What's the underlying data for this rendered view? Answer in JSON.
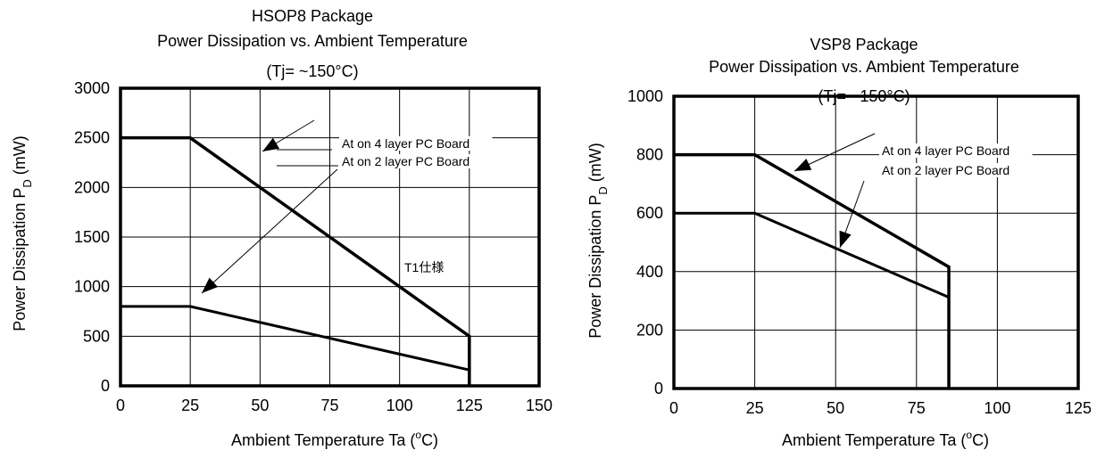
{
  "chart_data": [
    {
      "type": "line",
      "title": "HSOP8 Package",
      "subtitle": "Power Dissipation vs. Ambient Temperature",
      "condition": "(Tj= ~150°C)",
      "xlabel": "Ambient Temperature Ta (°C)",
      "ylabel": "Power Dissipation P_D (mW)",
      "ylabel_main": "Power Dissipation P",
      "ylabel_sub": "D",
      "ylabel_unit": "(mW)",
      "xlabel_main": "Ambient Temperature Ta  (",
      "xlabel_sup": "o",
      "xlabel_tail": "C)",
      "xlim": [
        0,
        150
      ],
      "ylim": [
        0,
        3000
      ],
      "xticks": [
        0,
        25,
        50,
        75,
        100,
        125,
        150
      ],
      "yticks": [
        0,
        500,
        1000,
        1500,
        2000,
        2500,
        3000
      ],
      "grid": true,
      "series": [
        {
          "name": "At on 4 layer PC Board",
          "x": [
            0,
            25,
            125,
            125
          ],
          "y": [
            2500,
            2500,
            500,
            0
          ]
        },
        {
          "name": "At on 2 layer PC Board",
          "x": [
            0,
            25,
            50,
            75,
            100,
            125
          ],
          "y": [
            800,
            800,
            640,
            480,
            320,
            160
          ]
        }
      ],
      "annotations": [
        "At  on 4 layer  PC Board",
        "At  on 2 layer  PC Board",
        "T1仕様"
      ]
    },
    {
      "type": "line",
      "title": "VSP8 Package",
      "subtitle": "Power Dissipation vs. Ambient Temperature",
      "condition": "(Tj= ~150°C)",
      "xlabel": "Ambient Temperature Ta (°C)",
      "ylabel": "Power Dissipation P_D (mW)",
      "ylabel_main": "Power Dissipation P",
      "ylabel_sub": "D",
      "ylabel_unit": "(mW)",
      "xlabel_main": "Ambient Temperature  Ta  (",
      "xlabel_sup": "o",
      "xlabel_tail": "C)",
      "xlim": [
        0,
        125
      ],
      "ylim": [
        0,
        1000
      ],
      "xticks": [
        0,
        25,
        50,
        75,
        100,
        125
      ],
      "yticks": [
        0,
        200,
        400,
        600,
        800,
        1000
      ],
      "grid": true,
      "series": [
        {
          "name": "At on 4 layer PC Board",
          "x": [
            0,
            25,
            85,
            85
          ],
          "y": [
            800,
            800,
            416,
            0
          ]
        },
        {
          "name": "At on 2 layer PC Board",
          "x": [
            0,
            25,
            85
          ],
          "y": [
            600,
            600,
            312
          ]
        }
      ],
      "annotations": [
        "At  on 4 layer  PC Board",
        "At  on 2 layer  PC Board"
      ]
    }
  ]
}
